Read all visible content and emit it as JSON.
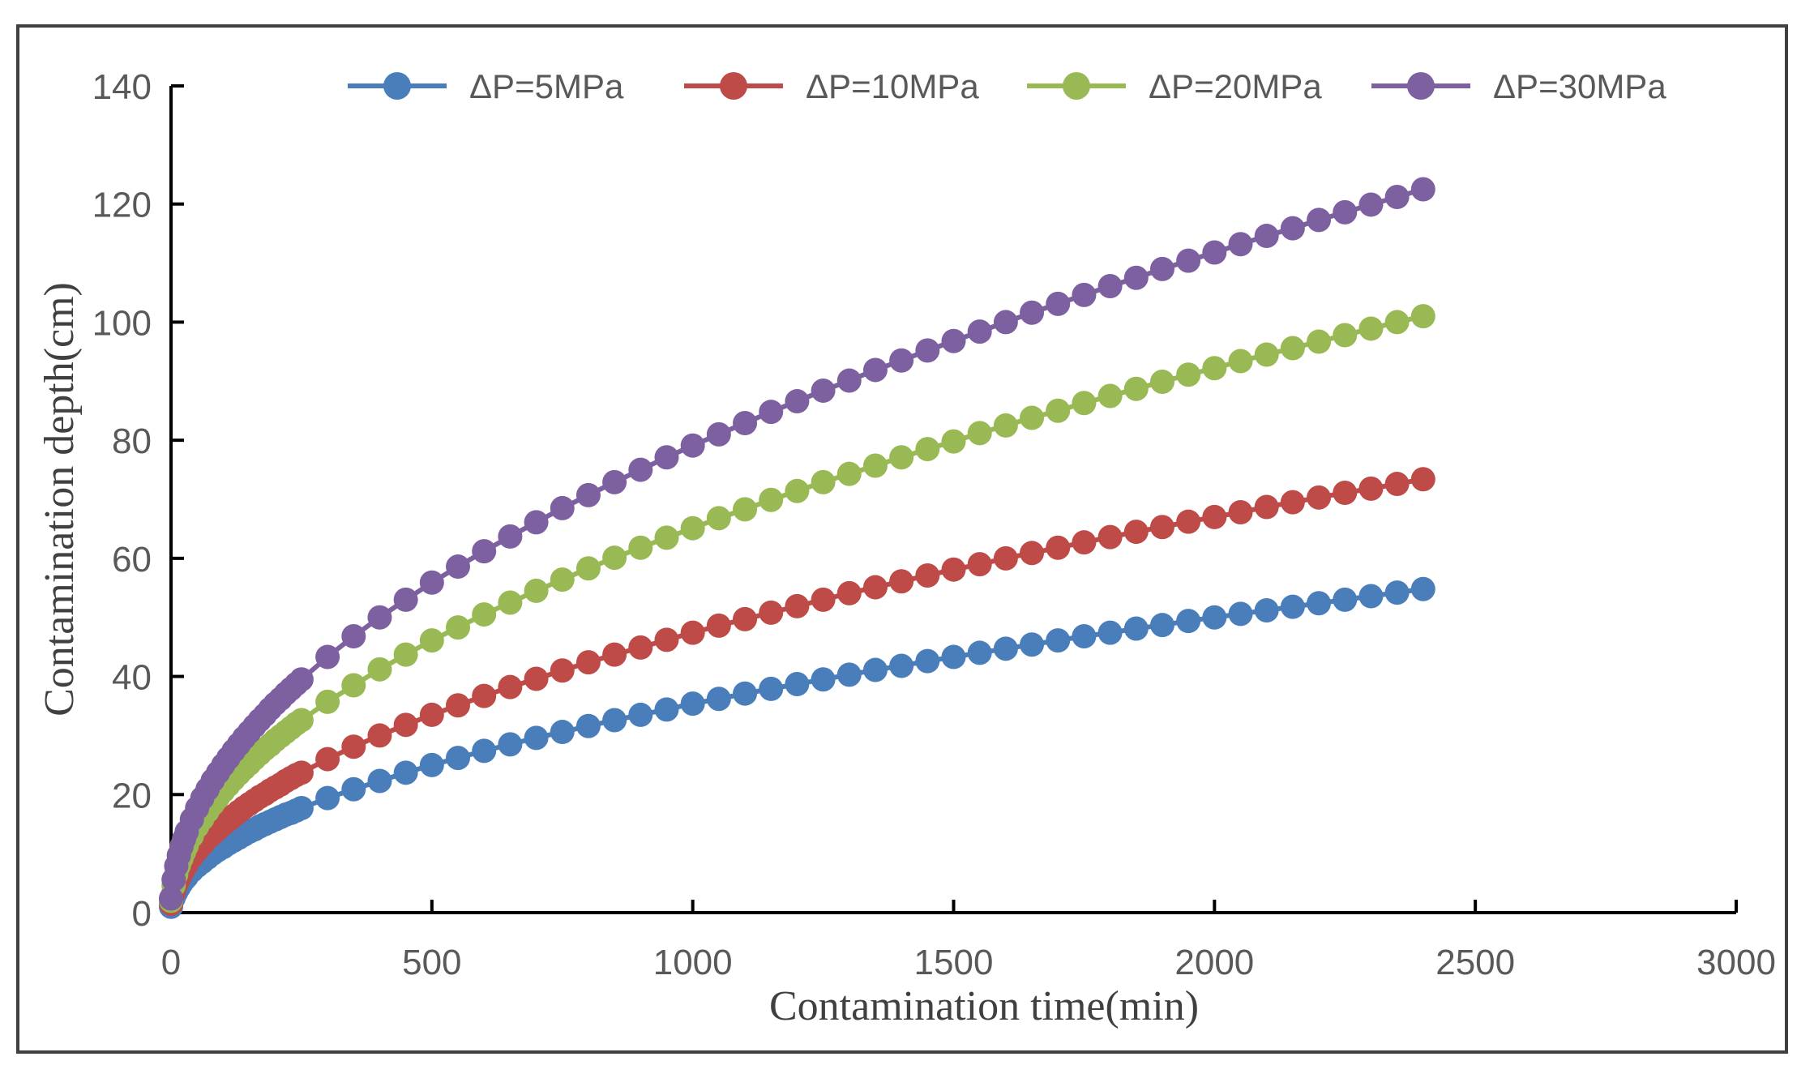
{
  "chart_data": {
    "type": "line",
    "title": "",
    "xlabel": "Contamination time(min)",
    "ylabel": "Contamination depth(cm)",
    "xlim": [
      0,
      3000
    ],
    "ylim": [
      0,
      140
    ],
    "xticks": [
      0,
      500,
      1000,
      1500,
      2000,
      2500,
      3000
    ],
    "yticks": [
      0,
      20,
      40,
      60,
      80,
      100,
      120,
      140
    ],
    "xtick_labels": [
      "0",
      "500",
      "1000",
      "1500",
      "2000",
      "2500",
      "3000"
    ],
    "ytick_labels": [
      "0",
      "20",
      "40",
      "60",
      "80",
      "100",
      "120",
      "140"
    ],
    "grid": false,
    "legend_position": "top",
    "x": [
      0,
      5,
      10,
      15,
      20,
      25,
      30,
      40,
      50,
      60,
      70,
      80,
      90,
      100,
      110,
      120,
      130,
      140,
      150,
      160,
      170,
      180,
      190,
      200,
      210,
      220,
      230,
      240,
      250,
      300,
      350,
      400,
      450,
      500,
      550,
      600,
      650,
      700,
      750,
      800,
      850,
      900,
      950,
      1000,
      1050,
      1100,
      1150,
      1200,
      1250,
      1300,
      1350,
      1400,
      1450,
      1500,
      1550,
      1600,
      1650,
      1700,
      1750,
      1800,
      1850,
      1900,
      1950,
      2000,
      2050,
      2100,
      2150,
      2200,
      2250,
      2300,
      2350,
      2400
    ],
    "series": [
      {
        "name": "ΔP=5MPa",
        "color": "#4A7EBB",
        "values": [
          1.0,
          2.5,
          3.5,
          4.3,
          5.0,
          5.6,
          6.1,
          7.1,
          7.9,
          8.6,
          9.3,
          10.0,
          10.6,
          11.1,
          11.7,
          12.2,
          12.7,
          13.2,
          13.7,
          14.1,
          14.6,
          15.0,
          15.4,
          15.8,
          16.2,
          16.6,
          16.9,
          17.3,
          17.7,
          19.4,
          20.9,
          22.3,
          23.7,
          25.0,
          26.2,
          27.4,
          28.5,
          29.6,
          30.6,
          31.6,
          32.6,
          33.5,
          34.4,
          35.4,
          36.2,
          37.1,
          37.9,
          38.7,
          39.5,
          40.3,
          41.1,
          41.8,
          42.6,
          43.3,
          44.0,
          44.7,
          45.4,
          46.1,
          46.8,
          47.4,
          48.1,
          48.7,
          49.4,
          50.0,
          50.6,
          51.2,
          51.8,
          52.4,
          53.0,
          53.6,
          54.2,
          54.8
        ]
      },
      {
        "name": "ΔP=10MPa",
        "color": "#BE4B48",
        "values": [
          1.5,
          3.4,
          4.8,
          5.8,
          6.7,
          7.5,
          8.2,
          9.5,
          10.6,
          11.6,
          12.6,
          13.4,
          14.2,
          15.0,
          15.7,
          16.4,
          17.1,
          17.8,
          18.4,
          19.0,
          19.6,
          20.1,
          20.7,
          21.2,
          21.7,
          22.3,
          22.8,
          23.3,
          23.7,
          26.0,
          28.1,
          30.0,
          31.8,
          33.5,
          35.1,
          36.7,
          38.2,
          39.6,
          41.0,
          42.4,
          43.7,
          44.9,
          46.2,
          47.4,
          48.6,
          49.7,
          50.8,
          51.9,
          53.0,
          54.1,
          55.1,
          56.1,
          57.1,
          58.1,
          59.0,
          60.0,
          60.9,
          61.8,
          62.7,
          63.6,
          64.5,
          65.3,
          66.2,
          67.0,
          67.8,
          68.7,
          69.5,
          70.3,
          71.1,
          71.8,
          72.6,
          73.4
        ]
      },
      {
        "name": "ΔP=20MPa",
        "color": "#98B954",
        "values": [
          2.0,
          4.6,
          6.5,
          8.0,
          9.2,
          10.3,
          11.3,
          13.0,
          14.6,
          15.9,
          17.2,
          18.4,
          19.5,
          20.6,
          21.6,
          22.6,
          23.5,
          24.4,
          25.2,
          26.1,
          26.9,
          27.7,
          28.4,
          29.2,
          29.9,
          30.6,
          31.3,
          32.0,
          32.6,
          35.7,
          38.5,
          41.2,
          43.7,
          46.1,
          48.3,
          50.5,
          52.5,
          54.5,
          56.4,
          58.3,
          60.1,
          61.8,
          63.5,
          65.1,
          66.8,
          68.3,
          69.9,
          71.4,
          72.9,
          74.3,
          75.7,
          77.1,
          78.5,
          79.8,
          81.2,
          82.5,
          83.8,
          85.0,
          86.3,
          87.5,
          88.7,
          89.9,
          91.1,
          92.2,
          93.4,
          94.5,
          95.6,
          96.7,
          97.8,
          98.9,
          100.0,
          101.0
        ]
      },
      {
        "name": "ΔP=30MPa",
        "color": "#7D60A0",
        "values": [
          2.4,
          5.6,
          7.9,
          9.7,
          11.2,
          12.5,
          13.7,
          15.8,
          17.7,
          19.4,
          20.9,
          22.4,
          23.7,
          25.0,
          26.2,
          27.4,
          28.5,
          29.6,
          30.6,
          31.6,
          32.6,
          33.5,
          34.5,
          35.4,
          36.2,
          37.1,
          37.9,
          38.7,
          39.5,
          43.3,
          46.8,
          50.0,
          53.0,
          55.9,
          58.6,
          61.2,
          63.7,
          66.1,
          68.5,
          70.7,
          72.9,
          75.0,
          77.1,
          79.1,
          81.0,
          82.9,
          84.8,
          86.6,
          88.4,
          90.1,
          91.9,
          93.5,
          95.2,
          96.8,
          98.4,
          100.0,
          101.6,
          103.1,
          104.6,
          106.1,
          107.5,
          109.0,
          110.4,
          111.8,
          113.2,
          114.6,
          115.9,
          117.3,
          118.6,
          119.9,
          121.2,
          122.5
        ]
      }
    ]
  }
}
